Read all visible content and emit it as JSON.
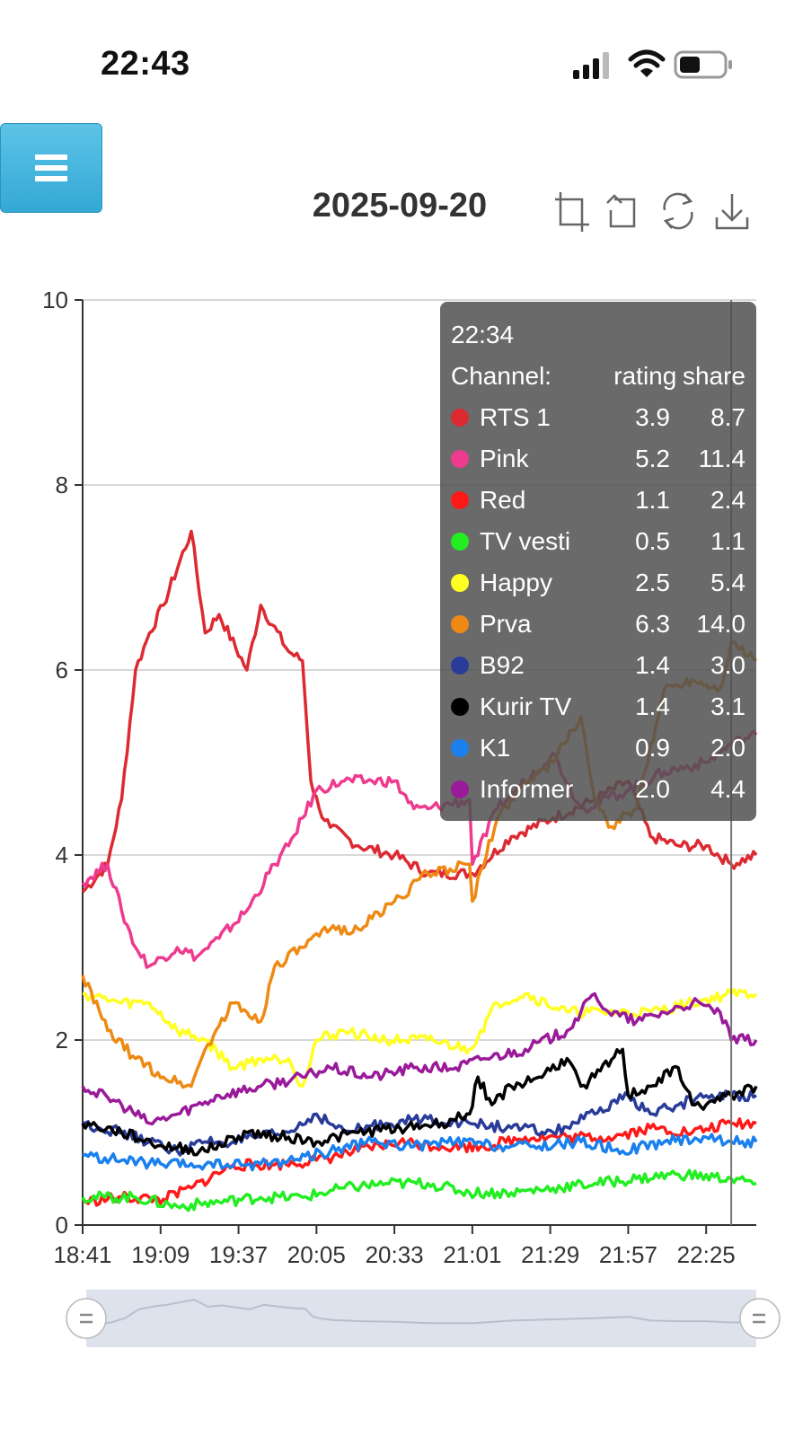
{
  "status": {
    "time": "22:43",
    "icons": [
      "signal-icon",
      "wifi-icon",
      "battery-icon"
    ]
  },
  "menu": {
    "icon": "hamburger-icon"
  },
  "toolbox": {
    "icons": [
      "zoom-icon",
      "zoom-reset-icon",
      "restore-icon",
      "save-image-icon"
    ]
  },
  "tooltip": {
    "time": "22:34",
    "header": {
      "channel": "Channel:",
      "rating": "rating",
      "share": "share"
    },
    "rows": [
      {
        "name": "RTS 1",
        "rating": "3.9",
        "share": "8.7",
        "color": "#dd2a32"
      },
      {
        "name": "Pink",
        "rating": "5.2",
        "share": "11.4",
        "color": "#ee3a8f"
      },
      {
        "name": "Red",
        "rating": "1.1",
        "share": "2.4",
        "color": "#ff1a1a"
      },
      {
        "name": "TV vesti",
        "rating": "0.5",
        "share": "1.1",
        "color": "#22ee22"
      },
      {
        "name": "Happy",
        "rating": "2.5",
        "share": "5.4",
        "color": "#ffff22"
      },
      {
        "name": "Prva",
        "rating": "6.3",
        "share": "14.0",
        "color": "#ee8a14"
      },
      {
        "name": "B92",
        "rating": "1.4",
        "share": "3.0",
        "color": "#2a3c9a"
      },
      {
        "name": "Kurir TV",
        "rating": "1.4",
        "share": "3.1",
        "color": "#000000"
      },
      {
        "name": "K1",
        "rating": "0.9",
        "share": "2.0",
        "color": "#1a80ee"
      },
      {
        "name": "Informer",
        "rating": "2.0",
        "share": "4.4",
        "color": "#9a1a9a"
      }
    ]
  },
  "chart_data": {
    "type": "line",
    "title": "2025-09-20",
    "xlabel": "",
    "ylabel": "",
    "ylim": [
      0,
      10
    ],
    "yticks": [
      0,
      2,
      4,
      6,
      8,
      10
    ],
    "grid": true,
    "xticks": [
      "18:41",
      "19:09",
      "19:37",
      "20:05",
      "20:33",
      "21:01",
      "21:29",
      "21:57",
      "22:25"
    ],
    "x_range": [
      "18:41",
      "22:43"
    ],
    "cursor_time": "22:34",
    "series": [
      {
        "name": "RTS 1",
        "color": "#dd2a32",
        "x": [
          "18:41",
          "18:50",
          "18:55",
          "19:00",
          "19:05",
          "19:10",
          "19:20",
          "19:25",
          "19:30",
          "19:40",
          "19:45",
          "19:55",
          "20:00",
          "20:03",
          "20:06",
          "20:10",
          "20:20",
          "20:33",
          "20:45",
          "21:01",
          "21:15",
          "21:30",
          "21:45",
          "21:57",
          "22:05",
          "22:15",
          "22:25",
          "22:34",
          "22:43"
        ],
        "y": [
          3.6,
          3.9,
          4.6,
          6.0,
          6.4,
          6.7,
          7.5,
          6.4,
          6.6,
          6.0,
          6.7,
          6.2,
          6.1,
          4.8,
          4.5,
          4.3,
          4.1,
          4.0,
          3.8,
          3.8,
          4.2,
          4.4,
          4.6,
          4.8,
          4.2,
          4.1,
          4.1,
          3.9,
          4.0
        ]
      },
      {
        "name": "Pink",
        "color": "#ee3a8f",
        "x": [
          "18:41",
          "18:50",
          "18:55",
          "19:00",
          "19:05",
          "19:15",
          "19:22",
          "19:30",
          "19:40",
          "19:50",
          "19:55",
          "20:00",
          "20:05",
          "20:15",
          "20:25",
          "20:33",
          "20:40",
          "20:45",
          "21:00",
          "21:01",
          "21:10",
          "21:20",
          "21:30",
          "21:40",
          "21:57",
          "22:10",
          "22:25",
          "22:34",
          "22:43"
        ],
        "y": [
          3.7,
          3.9,
          3.4,
          3.0,
          2.8,
          3.0,
          2.9,
          3.1,
          3.4,
          3.9,
          4.1,
          4.4,
          4.7,
          4.8,
          4.8,
          4.8,
          4.5,
          4.5,
          4.6,
          3.9,
          4.5,
          4.8,
          5.1,
          4.5,
          4.7,
          4.9,
          5.0,
          5.2,
          5.3
        ]
      },
      {
        "name": "Red",
        "color": "#ff1a1a",
        "x": [
          "18:41",
          "18:55",
          "19:10",
          "19:20",
          "19:35",
          "19:50",
          "20:05",
          "20:20",
          "20:35",
          "20:50",
          "21:05",
          "21:20",
          "21:35",
          "21:50",
          "22:05",
          "22:20",
          "22:34",
          "22:43"
        ],
        "y": [
          0.25,
          0.3,
          0.28,
          0.4,
          0.65,
          0.65,
          0.7,
          0.8,
          0.9,
          0.85,
          0.85,
          0.95,
          0.95,
          0.95,
          1.05,
          1.0,
          1.1,
          1.1
        ]
      },
      {
        "name": "TV vesti",
        "color": "#22ee22",
        "x": [
          "18:41",
          "19:00",
          "19:15",
          "19:30",
          "19:45",
          "20:00",
          "20:15",
          "20:30",
          "20:45",
          "21:00",
          "21:15",
          "21:30",
          "21:45",
          "22:00",
          "22:15",
          "22:34",
          "22:43"
        ],
        "y": [
          0.3,
          0.3,
          0.2,
          0.25,
          0.3,
          0.3,
          0.4,
          0.45,
          0.45,
          0.35,
          0.35,
          0.4,
          0.45,
          0.5,
          0.55,
          0.5,
          0.45
        ]
      },
      {
        "name": "Happy",
        "color": "#ffff22",
        "x": [
          "18:41",
          "18:55",
          "19:05",
          "19:15",
          "19:25",
          "19:35",
          "19:45",
          "19:55",
          "20:00",
          "20:05",
          "20:15",
          "20:30",
          "20:45",
          "21:00",
          "21:10",
          "21:20",
          "21:35",
          "21:50",
          "22:05",
          "22:20",
          "22:34",
          "22:43"
        ],
        "y": [
          2.5,
          2.4,
          2.4,
          2.1,
          2.0,
          1.7,
          1.8,
          1.8,
          1.5,
          2.0,
          2.1,
          2.0,
          2.0,
          1.9,
          2.4,
          2.5,
          2.3,
          2.3,
          2.3,
          2.4,
          2.5,
          2.5
        ]
      },
      {
        "name": "Prva",
        "color": "#ee8a14",
        "x": [
          "18:41",
          "18:50",
          "19:00",
          "19:10",
          "19:20",
          "19:25",
          "19:35",
          "19:45",
          "19:50",
          "20:00",
          "20:10",
          "20:20",
          "20:33",
          "20:45",
          "21:00",
          "21:01",
          "21:10",
          "21:20",
          "21:30",
          "21:40",
          "21:45",
          "21:50",
          "22:00",
          "22:10",
          "22:20",
          "22:30",
          "22:34",
          "22:43"
        ],
        "y": [
          2.7,
          2.1,
          1.8,
          1.6,
          1.5,
          1.9,
          2.4,
          2.2,
          2.8,
          3.0,
          3.2,
          3.2,
          3.5,
          3.8,
          3.9,
          3.5,
          4.4,
          4.8,
          5.0,
          5.5,
          4.6,
          4.3,
          4.5,
          5.8,
          5.9,
          5.8,
          6.3,
          6.1
        ]
      },
      {
        "name": "B92",
        "color": "#2a3c9a",
        "x": [
          "18:41",
          "18:55",
          "19:05",
          "19:15",
          "19:25",
          "19:35",
          "19:45",
          "19:55",
          "20:05",
          "20:15",
          "20:30",
          "20:45",
          "21:00",
          "21:15",
          "21:30",
          "21:45",
          "21:57",
          "22:05",
          "22:15",
          "22:25",
          "22:34",
          "22:43"
        ],
        "y": [
          1.1,
          1.0,
          0.9,
          0.8,
          0.9,
          0.9,
          0.95,
          1.0,
          1.2,
          1.0,
          1.1,
          1.15,
          1.1,
          1.05,
          1.0,
          1.2,
          1.4,
          1.2,
          1.3,
          1.4,
          1.4,
          1.4
        ]
      },
      {
        "name": "Kurir TV",
        "color": "#000000",
        "x": [
          "18:41",
          "18:55",
          "19:10",
          "19:25",
          "19:40",
          "19:55",
          "20:05",
          "20:20",
          "20:35",
          "20:50",
          "21:00",
          "21:03",
          "21:08",
          "21:15",
          "21:25",
          "21:35",
          "21:40",
          "21:45",
          "21:55",
          "21:57",
          "22:05",
          "22:15",
          "22:20",
          "22:25",
          "22:34",
          "22:43"
        ],
        "y": [
          1.1,
          1.0,
          0.85,
          0.8,
          1.0,
          0.95,
          0.9,
          1.0,
          1.05,
          1.1,
          1.2,
          1.6,
          1.3,
          1.5,
          1.6,
          1.8,
          1.5,
          1.6,
          1.9,
          1.4,
          1.5,
          1.7,
          1.3,
          1.3,
          1.4,
          1.5
        ]
      },
      {
        "name": "K1",
        "color": "#1a80ee",
        "x": [
          "18:41",
          "18:55",
          "19:10",
          "19:25",
          "19:40",
          "19:55",
          "20:10",
          "20:25",
          "20:40",
          "20:55",
          "21:10",
          "21:25",
          "21:40",
          "21:55",
          "22:10",
          "22:25",
          "22:34",
          "22:43"
        ],
        "y": [
          0.75,
          0.7,
          0.65,
          0.65,
          0.65,
          0.7,
          0.8,
          0.9,
          0.85,
          0.9,
          0.85,
          0.85,
          0.9,
          0.8,
          0.9,
          0.95,
          0.9,
          0.9
        ]
      },
      {
        "name": "Informer",
        "color": "#9a1a9a",
        "x": [
          "18:41",
          "18:55",
          "19:05",
          "19:15",
          "19:30",
          "19:45",
          "20:00",
          "20:10",
          "20:25",
          "20:40",
          "20:55",
          "21:05",
          "21:20",
          "21:35",
          "21:45",
          "21:50",
          "22:00",
          "22:10",
          "22:20",
          "22:30",
          "22:34",
          "22:43"
        ],
        "y": [
          1.5,
          1.3,
          1.1,
          1.2,
          1.4,
          1.5,
          1.6,
          1.7,
          1.6,
          1.7,
          1.7,
          1.8,
          1.9,
          2.1,
          2.5,
          2.3,
          2.2,
          2.3,
          2.4,
          2.3,
          2.0,
          2.0
        ]
      }
    ],
    "zoom_slider": {
      "start": "18:41",
      "end": "22:43"
    }
  }
}
